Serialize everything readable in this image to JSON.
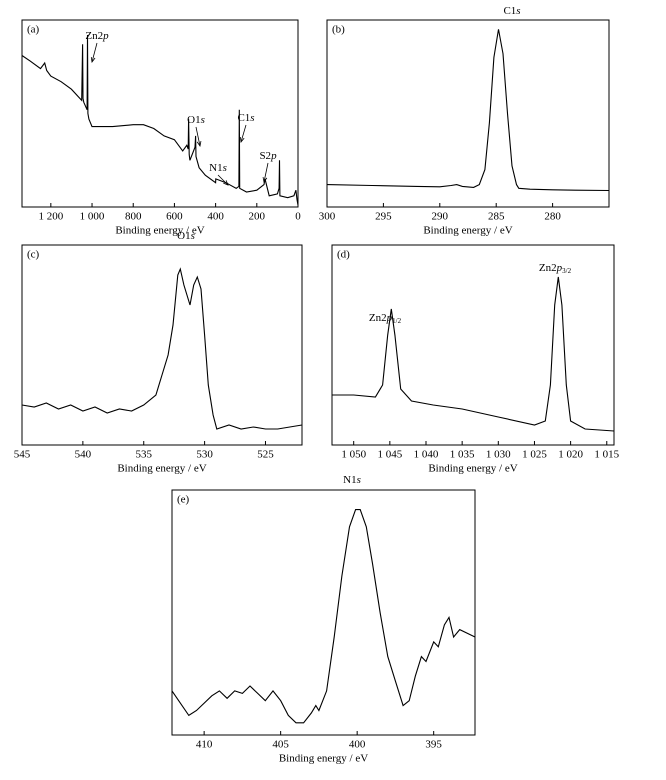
{
  "chart_data": [
    {
      "type": "line",
      "panel_label": "(a)",
      "xlabel": "Binding energy / eV",
      "color": "#000000",
      "xlim": [
        1340,
        0
      ],
      "ylim": [
        0,
        100
      ],
      "xticks": [
        {
          "value": 1200,
          "label": "1 200"
        },
        {
          "value": 1000,
          "label": "1 000"
        },
        800,
        600,
        400,
        200,
        0
      ],
      "annotations": [
        {
          "label": [
            "Zn2",
            "p"
          ]
        },
        {
          "label": [
            "O1",
            "s"
          ]
        },
        {
          "label": [
            "C1",
            "s"
          ]
        },
        {
          "label": [
            "N1",
            "s"
          ]
        },
        {
          "label": [
            "S2",
            "p"
          ]
        }
      ],
      "x": [
        1340,
        1300,
        1250,
        1230,
        1220,
        1200,
        1150,
        1100,
        1050,
        1046,
        1044,
        1040,
        1024,
        1022,
        1020,
        1015,
        1000,
        900,
        800,
        750,
        700,
        650,
        600,
        560,
        540,
        533,
        531,
        528,
        525,
        500,
        497,
        495,
        480,
        450,
        400,
        399,
        350,
        300,
        287,
        285,
        283,
        250,
        200,
        165,
        160,
        140,
        100,
        92,
        90,
        88,
        50,
        20,
        10,
        5,
        0
      ],
      "values": [
        81,
        78,
        74,
        77,
        73,
        70,
        67,
        63,
        57,
        87,
        58,
        56,
        52,
        92,
        50,
        47,
        43,
        43,
        44,
        44,
        42,
        38,
        36,
        30,
        33,
        31,
        47,
        28,
        25,
        32,
        38,
        27,
        21,
        17,
        13,
        15,
        13,
        10,
        11,
        52,
        10,
        8,
        9,
        12,
        15,
        6,
        7,
        10,
        25,
        6,
        5,
        6,
        9,
        4,
        1
      ]
    },
    {
      "type": "line",
      "panel_label": "(b)",
      "xlabel": "Binding energy / eV",
      "color": "#000000",
      "xlim": [
        300,
        275
      ],
      "ylim": [
        0,
        100
      ],
      "xticks": [
        300,
        295,
        290,
        285,
        280
      ],
      "annotations": [
        {
          "label": [
            "C1",
            "s"
          ]
        }
      ],
      "x": [
        300,
        296,
        292,
        290,
        289,
        288.5,
        288,
        287,
        286.5,
        286,
        285.6,
        285.2,
        284.8,
        284.4,
        284,
        283.6,
        283.2,
        283,
        282,
        280,
        278,
        275
      ],
      "values": [
        12,
        11.5,
        11,
        10.8,
        11.5,
        12,
        11,
        10.5,
        12,
        20,
        45,
        80,
        95,
        82,
        50,
        22,
        12,
        10,
        9.5,
        9.2,
        9,
        8.8
      ]
    },
    {
      "type": "line",
      "panel_label": "(c)",
      "xlabel": "Binding energy / eV",
      "color": "#000000",
      "xlim": [
        545,
        522
      ],
      "ylim": [
        0,
        100
      ],
      "xticks": [
        545,
        540,
        535,
        530,
        525
      ],
      "annotations": [
        {
          "label": [
            "O1",
            "s"
          ]
        }
      ],
      "x": [
        545,
        544,
        543,
        542,
        541,
        540,
        539,
        538,
        537,
        536,
        535,
        534,
        533.5,
        533,
        532.6,
        532.2,
        532,
        531.7,
        531.2,
        530.9,
        530.6,
        530.3,
        530,
        529.7,
        529.3,
        529,
        528,
        527,
        526,
        525,
        524,
        523,
        522
      ],
      "values": [
        20,
        19,
        21,
        18,
        20,
        17,
        19,
        16,
        18,
        17,
        20,
        25,
        35,
        45,
        60,
        85,
        88,
        80,
        70,
        80,
        84,
        78,
        55,
        30,
        15,
        8,
        10,
        8,
        9,
        8,
        8,
        9,
        10
      ]
    },
    {
      "type": "line",
      "panel_label": "(d)",
      "xlabel": "Binding energy / eV",
      "color": "#000000",
      "xlim": [
        1053,
        1014
      ],
      "ylim": [
        0,
        100
      ],
      "xticks": [
        {
          "value": 1050,
          "label": "1 050"
        },
        {
          "value": 1045,
          "label": "1 045"
        },
        {
          "value": 1040,
          "label": "1 040"
        },
        {
          "value": 1035,
          "label": "1 035"
        },
        {
          "value": 1030,
          "label": "1 030"
        },
        {
          "value": 1025,
          "label": "1 025"
        },
        {
          "value": 1020,
          "label": "1 020"
        },
        {
          "value": 1015,
          "label": "1 015"
        }
      ],
      "annotations": [
        {
          "label": [
            "Zn2",
            "p",
            "1/2"
          ]
        },
        {
          "label": [
            "Zn2",
            "p",
            "3/2"
          ]
        }
      ],
      "x": [
        1053,
        1050,
        1047,
        1046,
        1045.3,
        1044.8,
        1044.3,
        1043.5,
        1042,
        1039,
        1035,
        1030,
        1025,
        1023.5,
        1022.8,
        1022.2,
        1021.7,
        1021.2,
        1020.6,
        1020,
        1018,
        1014
      ],
      "values": [
        25,
        25,
        24,
        30,
        55,
        68,
        55,
        28,
        22,
        20,
        18,
        14,
        10,
        12,
        30,
        70,
        84,
        70,
        30,
        12,
        8,
        7
      ]
    },
    {
      "type": "line",
      "panel_label": "(e)",
      "xlabel": "Binding energy / eV",
      "color": "#000000",
      "xlim": [
        412.1,
        392.3
      ],
      "ylim": [
        0,
        100
      ],
      "xticks": [
        410,
        405,
        400,
        395
      ],
      "annotations": [
        {
          "label": [
            "N1",
            "s"
          ]
        }
      ],
      "x": [
        412.1,
        411,
        410.5,
        409.5,
        409,
        408.5,
        408,
        407.5,
        407,
        406.5,
        406,
        405.5,
        405,
        404.5,
        404,
        403.5,
        403,
        402.7,
        402.5,
        402,
        401.5,
        401,
        400.5,
        400.1,
        399.8,
        399.4,
        399,
        398.5,
        398,
        397.5,
        397,
        396.6,
        396.2,
        395.8,
        395.5,
        395,
        394.7,
        394.3,
        394,
        393.7,
        393.3,
        392.3
      ],
      "values": [
        18,
        8,
        10,
        16,
        18,
        15,
        18,
        17,
        20,
        17,
        14,
        18,
        14,
        8,
        5,
        5,
        9,
        12,
        10,
        18,
        40,
        65,
        85,
        92,
        92,
        85,
        70,
        50,
        32,
        22,
        12,
        14,
        24,
        32,
        30,
        38,
        36,
        45,
        48,
        40,
        43,
        40
      ]
    }
  ]
}
